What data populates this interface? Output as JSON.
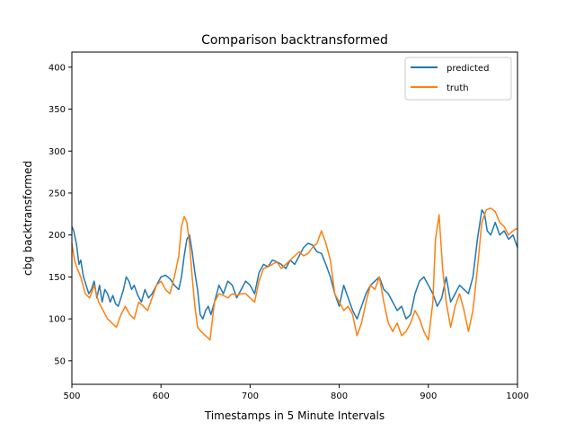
{
  "chart_data": {
    "type": "line",
    "title": "Comparison backtransformed",
    "xlabel": "Timestamps in 5 Minute Intervals",
    "ylabel": "cbg backtransformed",
    "xlim": [
      500,
      1000
    ],
    "ylim": [
      22,
      418
    ],
    "xticks": [
      500,
      600,
      700,
      800,
      900,
      1000
    ],
    "yticks": [
      50,
      100,
      150,
      200,
      250,
      300,
      350,
      400
    ],
    "grid": false,
    "legend": "top-right",
    "series": [
      {
        "name": "predicted",
        "color": "#1f77b4",
        "x": [
          500,
          502,
          505,
          508,
          510,
          513,
          516,
          519,
          522,
          525,
          528,
          531,
          534,
          537,
          540,
          543,
          546,
          549,
          552,
          555,
          558,
          561,
          564,
          567,
          570,
          574,
          578,
          582,
          586,
          590,
          595,
          600,
          605,
          610,
          615,
          620,
          623,
          626,
          629,
          632,
          635,
          638,
          641,
          644,
          647,
          650,
          653,
          656,
          660,
          665,
          670,
          675,
          680,
          685,
          690,
          695,
          700,
          705,
          710,
          715,
          720,
          725,
          730,
          735,
          740,
          745,
          750,
          755,
          760,
          765,
          770,
          775,
          780,
          785,
          790,
          795,
          800,
          805,
          810,
          815,
          820,
          825,
          830,
          835,
          840,
          845,
          850,
          855,
          860,
          865,
          870,
          875,
          880,
          885,
          890,
          895,
          900,
          905,
          910,
          915,
          920,
          925,
          930,
          935,
          940,
          945,
          950,
          955,
          960,
          963,
          966,
          970,
          975,
          980,
          985,
          990,
          995,
          1000
        ],
        "values": [
          210,
          205,
          190,
          165,
          170,
          150,
          140,
          130,
          135,
          145,
          125,
          140,
          120,
          135,
          130,
          120,
          128,
          118,
          115,
          125,
          135,
          150,
          145,
          135,
          140,
          128,
          120,
          135,
          125,
          130,
          140,
          150,
          152,
          148,
          140,
          135,
          150,
          175,
          195,
          200,
          180,
          155,
          135,
          105,
          100,
          110,
          115,
          105,
          120,
          140,
          130,
          145,
          140,
          125,
          135,
          145,
          140,
          130,
          155,
          165,
          162,
          170,
          168,
          165,
          160,
          170,
          165,
          175,
          185,
          190,
          188,
          180,
          178,
          165,
          150,
          130,
          115,
          140,
          125,
          110,
          100,
          115,
          130,
          140,
          145,
          150,
          135,
          130,
          120,
          110,
          115,
          100,
          105,
          130,
          145,
          150,
          140,
          130,
          115,
          125,
          150,
          120,
          130,
          140,
          135,
          130,
          150,
          195,
          230,
          225,
          205,
          200,
          215,
          200,
          205,
          195,
          200,
          185
        ]
      },
      {
        "name": "truth",
        "color": "#ff7f0e",
        "x": [
          500,
          503,
          506,
          510,
          515,
          520,
          525,
          530,
          535,
          540,
          545,
          550,
          555,
          560,
          565,
          570,
          575,
          580,
          585,
          590,
          595,
          600,
          605,
          610,
          615,
          620,
          623,
          626,
          629,
          632,
          635,
          638,
          641,
          645,
          650,
          655,
          660,
          665,
          670,
          675,
          680,
          685,
          690,
          695,
          700,
          705,
          710,
          715,
          720,
          725,
          730,
          735,
          740,
          745,
          750,
          755,
          760,
          765,
          770,
          775,
          780,
          785,
          790,
          795,
          800,
          805,
          810,
          815,
          820,
          825,
          830,
          835,
          840,
          845,
          850,
          855,
          860,
          865,
          870,
          875,
          880,
          885,
          890,
          895,
          900,
          905,
          908,
          912,
          916,
          920,
          925,
          930,
          935,
          940,
          945,
          950,
          955,
          960,
          965,
          970,
          975,
          980,
          985,
          990,
          995,
          1000
        ],
        "values": [
          190,
          170,
          160,
          150,
          130,
          125,
          140,
          120,
          110,
          100,
          95,
          90,
          105,
          115,
          105,
          100,
          120,
          115,
          110,
          125,
          140,
          145,
          135,
          130,
          150,
          175,
          210,
          222,
          215,
          190,
          150,
          115,
          90,
          85,
          80,
          75,
          120,
          130,
          128,
          125,
          130,
          128,
          130,
          130,
          125,
          120,
          145,
          160,
          162,
          165,
          168,
          160,
          165,
          170,
          175,
          180,
          175,
          178,
          185,
          190,
          205,
          190,
          170,
          130,
          120,
          110,
          115,
          105,
          80,
          95,
          120,
          140,
          135,
          150,
          120,
          95,
          85,
          95,
          80,
          85,
          95,
          110,
          100,
          85,
          75,
          120,
          195,
          224,
          160,
          120,
          90,
          115,
          130,
          110,
          85,
          110,
          160,
          215,
          230,
          232,
          228,
          215,
          210,
          200,
          205,
          208
        ]
      }
    ]
  }
}
